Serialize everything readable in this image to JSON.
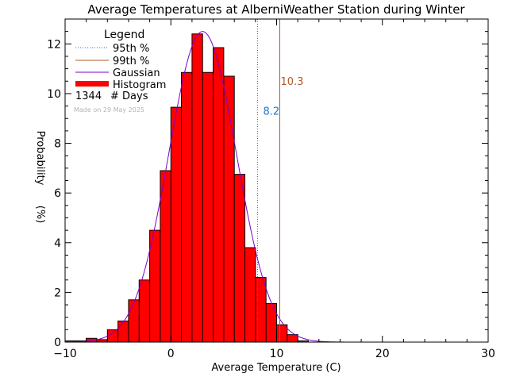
{
  "chart_data": {
    "type": "bar",
    "title": "Average Temperatures at AlberniWeather Station during Winter",
    "xlabel": "Average Temperature (C)",
    "ylabel_top": "Probability",
    "ylabel_bottom": "(%)",
    "xlim": [
      -10,
      30
    ],
    "ylim": [
      0,
      13
    ],
    "xticks": [
      -10,
      0,
      10,
      20,
      30
    ],
    "yticks": [
      0,
      2,
      4,
      6,
      8,
      10,
      12
    ],
    "histogram": {
      "name": "Histogram",
      "bin_width": 1,
      "bin_starts": [
        -10,
        -9,
        -8,
        -7,
        -6,
        -5,
        -4,
        -3,
        -2,
        -1,
        0,
        1,
        2,
        3,
        4,
        5,
        6,
        7,
        8,
        9,
        10,
        11,
        12
      ],
      "values": [
        0.05,
        0.05,
        0.15,
        0.1,
        0.5,
        0.85,
        1.7,
        2.5,
        4.5,
        6.9,
        9.45,
        10.85,
        12.4,
        10.85,
        11.85,
        10.7,
        6.75,
        3.8,
        2.6,
        1.55,
        0.7,
        0.3,
        0.05
      ],
      "color": "#ff0000"
    },
    "gaussian": {
      "name": "Gaussian",
      "mean": 3.0,
      "sd": 3.2,
      "peak": 12.5,
      "color": "#7b00c8"
    },
    "percentiles": [
      {
        "name": "95th %",
        "value": 8.2,
        "label": "8.2",
        "color": "#1f78c8",
        "style": "dotted"
      },
      {
        "name": "99th %",
        "value": 10.3,
        "label": "10.3",
        "color": "#b05a28",
        "style": "solid"
      }
    ],
    "legend": {
      "title": "Legend",
      "placement": "top-left",
      "entries": [
        "95th %",
        "99th %",
        "Gaussian",
        "Histogram"
      ],
      "days_count": "1344",
      "days_label": "# Days"
    },
    "watermark": "Made on 29 May 2025"
  }
}
